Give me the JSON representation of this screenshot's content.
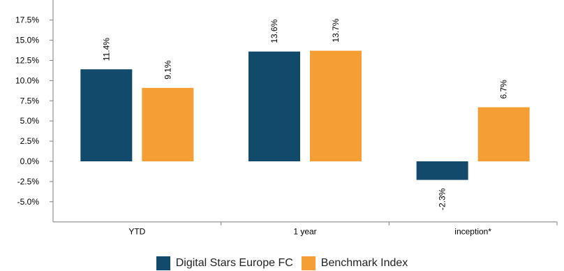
{
  "chart_data": {
    "type": "bar",
    "categories": [
      "YTD",
      "1 year",
      "inception*"
    ],
    "series": [
      {
        "name": "Digital Stars Europe FC",
        "values": [
          11.4,
          13.6,
          -2.3
        ],
        "labels": [
          "11.4%",
          "13.6%",
          "-2.3%"
        ],
        "color": "#124a6b"
      },
      {
        "name": "Benchmark Index",
        "values": [
          9.1,
          13.7,
          6.7
        ],
        "labels": [
          "9.1%",
          "13.7%",
          "6.7%"
        ],
        "color": "#f49e34"
      }
    ],
    "yticks": [
      "17.5%",
      "15.0%",
      "12.5%",
      "10.0%",
      "7.5%",
      "5.0%",
      "2.5%",
      "0.0%",
      "-2.5%",
      "-5.0%"
    ],
    "ytick_values": [
      17.5,
      15.0,
      12.5,
      10.0,
      7.5,
      5.0,
      2.5,
      0.0,
      -2.5,
      -5.0
    ],
    "ylim": [
      -7.5,
      20
    ],
    "grid": false,
    "legend_position": "bottom-center",
    "axis_color": "#7f7f7f"
  }
}
